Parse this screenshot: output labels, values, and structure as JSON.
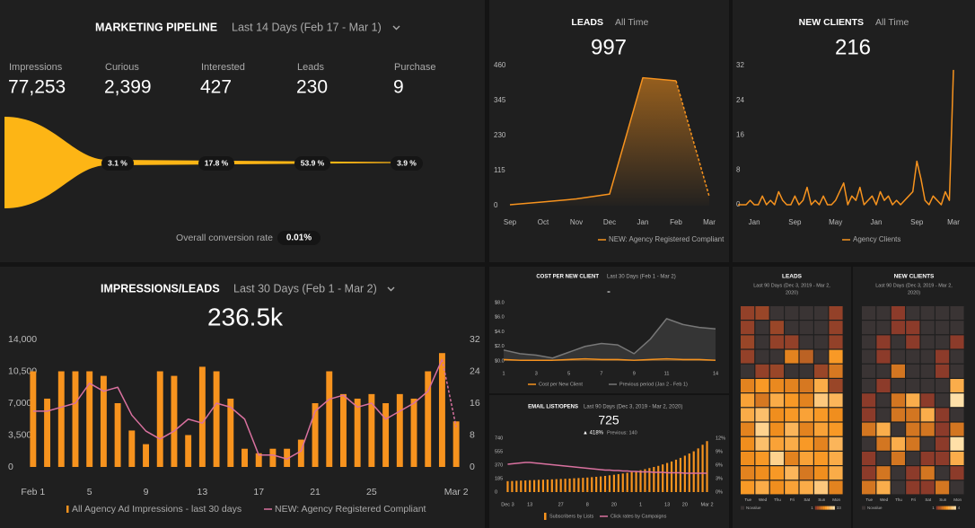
{
  "pipeline": {
    "title": "MARKETING PIPELINE",
    "period": "Last 14 Days (Feb 17 - Mar 1)",
    "stages": [
      {
        "name": "Impressions",
        "value": "77,253"
      },
      {
        "name": "Curious",
        "value": "2,399"
      },
      {
        "name": "Interested",
        "value": "427"
      },
      {
        "name": "Leads",
        "value": "230"
      },
      {
        "name": "Purchase",
        "value": "9"
      }
    ],
    "rates": [
      "3.1 %",
      "17.8 %",
      "53.9 %",
      "3.9 %"
    ],
    "overall_label": "Overall conversion rate",
    "overall_value": "0.01%"
  },
  "chart_data": [
    {
      "type": "line",
      "title": "LEADS",
      "subtitle": "All Time",
      "big_value": "997",
      "area": true,
      "dashed_last": true,
      "grid": false,
      "categories": [
        "Sep",
        "Oct",
        "Nov",
        "Dec",
        "Jan",
        "Feb",
        "Mar"
      ],
      "series": [
        {
          "name": "NEW: Agency Registered Compliant",
          "color": "#f7931e",
          "values": [
            3,
            12,
            22,
            38,
            420,
            410,
            30
          ]
        }
      ],
      "ylim": [
        0,
        460
      ],
      "yticks": [
        0,
        115,
        230,
        345,
        460
      ]
    },
    {
      "type": "line",
      "title": "NEW CLIENTS",
      "subtitle": "All Time",
      "big_value": "216",
      "area": false,
      "dashed_last": false,
      "grid": false,
      "categories": [
        null,
        null,
        null,
        null,
        "Jan",
        null,
        null,
        null,
        null,
        null,
        null,
        null,
        null,
        null,
        "Sep",
        null,
        null,
        null,
        null,
        null,
        null,
        null,
        null,
        null,
        "May",
        null,
        null,
        null,
        null,
        null,
        null,
        null,
        null,
        null,
        "Jan",
        null,
        null,
        null,
        null,
        null,
        null,
        null,
        null,
        null,
        "Sep",
        null,
        null,
        null,
        null,
        null,
        null,
        null,
        null,
        "Mar"
      ],
      "series": [
        {
          "name": "Agency Clients",
          "color": "#f7931e",
          "values": [
            0,
            0,
            0,
            1,
            0,
            0,
            2,
            0,
            1,
            0,
            3,
            1,
            0,
            0,
            2,
            0,
            1,
            4,
            0,
            1,
            0,
            2,
            0,
            0,
            1,
            3,
            5,
            0,
            2,
            1,
            4,
            0,
            1,
            2,
            0,
            3,
            1,
            2,
            0,
            1,
            0,
            1,
            2,
            3,
            10,
            6,
            1,
            0,
            2,
            1,
            0,
            3,
            1,
            31
          ]
        }
      ],
      "ylim": [
        0,
        32
      ],
      "yticks": [
        0,
        8,
        16,
        24,
        32
      ]
    },
    {
      "type": "combo",
      "title": "IMPRESSIONS/LEADS",
      "subtitle": "Last 30 Days (Feb 1 - Mar 2)",
      "big_value": "236.5k",
      "grid": false,
      "categories": [
        "Feb 1",
        null,
        null,
        null,
        "5",
        null,
        null,
        null,
        "9",
        null,
        null,
        null,
        "13",
        null,
        null,
        null,
        "17",
        null,
        null,
        null,
        "21",
        null,
        null,
        null,
        "25",
        null,
        null,
        null,
        null,
        null,
        "Mar 2"
      ],
      "series": [
        {
          "name": "All Agency Ad Impressions - last 30 days",
          "kind": "bar",
          "color": "#f7931e",
          "values": [
            10500,
            7500,
            10500,
            10500,
            10500,
            10000,
            7000,
            4000,
            2500,
            10500,
            10000,
            3500,
            11000,
            10500,
            7500,
            2000,
            1500,
            2000,
            2000,
            3000,
            7000,
            10500,
            8000,
            7500,
            8000,
            7000,
            8000,
            7500,
            10500,
            12500,
            5000
          ]
        },
        {
          "name": "NEW: Agency Registered Compliant",
          "kind": "line",
          "axis": "y2",
          "dashed_last": true,
          "color": "#d9719f",
          "values": [
            14,
            14,
            15,
            16,
            21,
            19,
            20,
            13,
            9,
            7,
            9,
            12,
            11,
            16,
            15,
            12,
            3,
            3,
            2,
            4,
            14,
            17,
            18,
            15,
            16,
            12,
            14,
            16,
            19,
            27,
            10
          ]
        }
      ],
      "ylim": [
        0,
        14000
      ],
      "yticks": [
        0,
        {
          "value": 3500,
          "label": "3,500"
        },
        {
          "value": 7000,
          "label": "7,000"
        },
        {
          "value": 10500,
          "label": "10,500"
        },
        {
          "value": 14000,
          "label": "14,000"
        }
      ],
      "y2lim": [
        0,
        32
      ],
      "y2ticks": [
        0,
        8,
        16,
        24,
        32
      ]
    },
    {
      "type": "area",
      "title": "COST PER NEW CLIENT",
      "subtitle": "Last 30 Days (Feb 1 - Mar 2)",
      "big_value": "-",
      "grid": false,
      "x": [
        1,
        2,
        3,
        4,
        5,
        6,
        7,
        8,
        9,
        10,
        11,
        12,
        13,
        14
      ],
      "xlim": [
        1,
        14
      ],
      "xticks": [
        1,
        3,
        5,
        7,
        9,
        11,
        14
      ],
      "series": [
        {
          "name": "Cost per New Client",
          "color": "#f7931e",
          "values": [
            0.2,
            0.1,
            0.1,
            0.1,
            0.2,
            0.3,
            0.2,
            0.2,
            0.1,
            0.2,
            0.3,
            0.2,
            0.2,
            0.1
          ]
        },
        {
          "name": "Previous period (Jan 2 - Feb 1)",
          "color": "#777777",
          "values": [
            1.5,
            1.0,
            0.8,
            0.4,
            1.2,
            2.0,
            2.4,
            2.2,
            1.0,
            3.0,
            5.8,
            5.0,
            4.6,
            4.4
          ]
        }
      ],
      "ylim": [
        0,
        8
      ],
      "yticks": [
        {
          "value": 0,
          "label": "$0.0"
        },
        {
          "value": 2,
          "label": "$2.0"
        },
        {
          "value": 4,
          "label": "$4.0"
        },
        {
          "value": 6,
          "label": "$6.0"
        },
        {
          "value": 8,
          "label": "$8.0"
        }
      ]
    },
    {
      "type": "combo",
      "title": "EMAIL LIST/OPENS",
      "subtitle": "Last 90 Days (Dec 3, 2019 - Mar 2, 2020)",
      "big_value": "725",
      "change": "▲ 418%",
      "previous": "Previous: 140",
      "grid": false,
      "categories": [
        "Dec 3",
        null,
        null,
        null,
        null,
        "13",
        null,
        null,
        null,
        null,
        null,
        null,
        "27",
        null,
        null,
        null,
        null,
        null,
        "8",
        null,
        null,
        null,
        null,
        null,
        "20",
        null,
        null,
        null,
        null,
        null,
        "1",
        null,
        null,
        null,
        null,
        null,
        "13",
        null,
        null,
        null,
        "20",
        null,
        null,
        null,
        null,
        "Mar 2"
      ],
      "series": [
        {
          "name": "Subscribers by Lists",
          "kind": "bar",
          "color": "#f7931e",
          "values": [
            150,
            152,
            155,
            158,
            160,
            163,
            165,
            168,
            170,
            172,
            175,
            178,
            180,
            183,
            186,
            190,
            193,
            196,
            200,
            205,
            210,
            215,
            222,
            230,
            238,
            246,
            255,
            265,
            275,
            285,
            300,
            315,
            330,
            345,
            360,
            380,
            400,
            420,
            445,
            470,
            500,
            530,
            560,
            600,
            650,
            700
          ]
        },
        {
          "name": "Click rates by Campaigns",
          "kind": "line",
          "axis": "y2",
          "color": "#d9719f",
          "values": [
            6.2,
            6.3,
            6.4,
            6.5,
            6.6,
            6.6,
            6.5,
            6.4,
            6.3,
            6.2,
            6.1,
            6.0,
            5.9,
            5.8,
            5.7,
            5.6,
            5.5,
            5.4,
            5.3,
            5.2,
            5.1,
            5.0,
            4.9,
            4.9,
            4.8,
            4.8,
            4.7,
            4.7,
            4.6,
            4.6,
            4.5,
            4.5,
            4.5,
            4.4,
            4.4,
            4.4,
            4.3,
            4.3,
            4.3,
            4.3,
            4.2,
            4.2,
            4.2,
            4.2,
            4.2,
            4.2
          ]
        }
      ],
      "ylim": [
        0,
        740
      ],
      "yticks": [
        0,
        185,
        370,
        555,
        740
      ],
      "y2lim": [
        0,
        12
      ],
      "y2ticks": [
        {
          "value": 0,
          "label": "0%"
        },
        {
          "value": 3,
          "label": "3%"
        },
        {
          "value": 6,
          "label": "6%"
        },
        {
          "value": 9,
          "label": "9%"
        },
        {
          "value": 12,
          "label": "12%"
        }
      ]
    },
    {
      "type": "heatmap",
      "title": "LEADS",
      "subtitle_lines": [
        "Last 90 Days (Dec 3, 2019 - Mar 2,",
        "2020)"
      ],
      "columns": [
        "Tue",
        "Wed",
        "Thu",
        "Fri",
        "Sat",
        "Sun",
        "Mon"
      ],
      "null_label": "Novalue",
      "null_color": "#3a3434",
      "scale_min": 1,
      "scale_max": 33,
      "colors": [
        "#8c3b2a",
        "#f7941d",
        "#ffe0a8"
      ],
      "values": [
        [
          2,
          3,
          null,
          null,
          null,
          null,
          2
        ],
        [
          2,
          null,
          3,
          null,
          null,
          null,
          2
        ],
        [
          3,
          null,
          2,
          2,
          null,
          null,
          2
        ],
        [
          2,
          null,
          null,
          14,
          8,
          null,
          18
        ],
        [
          null,
          2,
          3,
          null,
          null,
          3,
          12
        ],
        [
          14,
          18,
          15,
          14,
          12,
          22,
          3
        ],
        [
          20,
          12,
          22,
          18,
          14,
          28,
          24
        ],
        [
          22,
          26,
          16,
          18,
          20,
          18,
          16
        ],
        [
          14,
          30,
          16,
          24,
          14,
          20,
          18
        ],
        [
          16,
          26,
          20,
          22,
          18,
          14,
          24
        ],
        [
          16,
          18,
          30,
          14,
          20,
          18,
          22
        ],
        [
          14,
          16,
          18,
          24,
          12,
          16,
          22
        ],
        [
          18,
          22,
          16,
          20,
          22,
          28,
          14
        ]
      ]
    },
    {
      "type": "heatmap",
      "title": "NEW CLIENTS",
      "subtitle_lines": [
        "Last 90 Days (Dec 3, 2019 - Mar 2,",
        "2020)"
      ],
      "columns": [
        "Tue",
        "Wed",
        "Thu",
        "Fri",
        "Sat",
        "Sun",
        "Mon"
      ],
      "null_label": "Novalue",
      "null_color": "#3a3434",
      "scale_min": 1,
      "scale_max": 4,
      "colors": [
        "#8c3b2a",
        "#f7941d",
        "#ffe0a8"
      ],
      "values": [
        [
          null,
          null,
          1,
          null,
          null,
          null,
          null
        ],
        [
          null,
          null,
          1,
          1,
          null,
          null,
          null
        ],
        [
          null,
          1,
          null,
          1,
          null,
          null,
          1
        ],
        [
          null,
          1,
          null,
          null,
          null,
          1,
          null
        ],
        [
          null,
          null,
          2,
          null,
          null,
          1,
          null
        ],
        [
          null,
          1,
          null,
          null,
          null,
          null,
          3
        ],
        [
          1,
          null,
          2,
          3,
          1,
          null,
          4
        ],
        [
          1,
          null,
          2,
          2,
          3,
          1,
          null
        ],
        [
          2,
          3,
          null,
          2,
          2,
          1,
          2
        ],
        [
          null,
          2,
          3,
          2,
          null,
          1,
          4
        ],
        [
          1,
          null,
          2,
          null,
          1,
          1,
          3
        ],
        [
          1,
          2,
          null,
          1,
          2,
          null,
          1
        ],
        [
          2,
          3,
          null,
          1,
          1,
          2,
          null
        ]
      ]
    }
  ]
}
